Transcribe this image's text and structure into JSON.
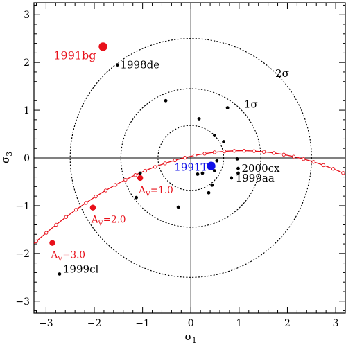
{
  "chart_data": {
    "type": "scatter",
    "xlabel": "σ",
    "xlabel_sub": "1",
    "ylabel": "σ",
    "ylabel_sub": "3",
    "xlim": [
      -3.25,
      3.2
    ],
    "ylim": [
      -3.25,
      3.25
    ],
    "x_ticks": [
      -3,
      -2,
      -1,
      0,
      1,
      2,
      3
    ],
    "y_ticks": [
      -3,
      -2,
      -1,
      0,
      1,
      2,
      3
    ],
    "x_tick_labels": [
      "−3",
      "−2",
      "−1",
      "0",
      "1",
      "2",
      "3"
    ],
    "y_tick_labels": [
      "−3",
      "−2",
      "−1",
      "0",
      "1",
      "2",
      "3"
    ],
    "grid": false,
    "contours": [
      {
        "label": "",
        "radius": 0.68
      },
      {
        "label": "1σ",
        "radius": 1.45
      },
      {
        "label": "2σ",
        "radius": 2.5
      }
    ],
    "extinction_curve": {
      "color": "#e8101a",
      "x_range": [
        -3.25,
        3.2
      ],
      "vertex": [
        1.05,
        0.15
      ],
      "curvature": -0.105,
      "markers": [
        {
          "label": "A",
          "sub": "V",
          "value": "=1.0",
          "x": -1.05,
          "y": -0.42
        },
        {
          "label": "A",
          "sub": "V",
          "value": "=2.0",
          "x": -2.03,
          "y": -1.04
        },
        {
          "label": "A",
          "sub": "V",
          "value": "=3.0",
          "x": -2.87,
          "y": -1.78
        }
      ]
    },
    "series": [
      {
        "color": "#000000",
        "points": [
          {
            "x": -1.52,
            "y": 1.95,
            "label": "1998de"
          },
          {
            "x": -0.52,
            "y": 1.2,
            "label": ""
          },
          {
            "x": 0.17,
            "y": 0.82,
            "label": ""
          },
          {
            "x": 0.76,
            "y": 1.05,
            "label": ""
          },
          {
            "x": 0.49,
            "y": 0.47,
            "label": ""
          },
          {
            "x": 0.68,
            "y": 0.34,
            "label": ""
          },
          {
            "x": 0.96,
            "y": -0.02,
            "label": ""
          },
          {
            "x": 0.54,
            "y": -0.06,
            "label": ""
          },
          {
            "x": 0.98,
            "y": -0.22,
            "label": "2000cx"
          },
          {
            "x": 0.98,
            "y": -0.32,
            "label": ""
          },
          {
            "x": 0.84,
            "y": -0.42,
            "label": "1999aa"
          },
          {
            "x": 0.49,
            "y": -0.27,
            "label": ""
          },
          {
            "x": 0.24,
            "y": -0.32,
            "label": ""
          },
          {
            "x": 0.14,
            "y": -0.34,
            "label": ""
          },
          {
            "x": 0.44,
            "y": -0.57,
            "label": ""
          },
          {
            "x": 0.37,
            "y": -0.73,
            "label": ""
          },
          {
            "x": -1.05,
            "y": -0.32,
            "label": ""
          },
          {
            "x": -1.13,
            "y": -0.83,
            "label": ""
          },
          {
            "x": -0.26,
            "y": -1.03,
            "label": ""
          },
          {
            "x": -2.72,
            "y": -2.43,
            "label": "1999cl"
          }
        ]
      },
      {
        "color": "#e8101a",
        "size": "large",
        "points": [
          {
            "x": -1.82,
            "y": 2.33,
            "label": "1991bg"
          }
        ]
      },
      {
        "color": "#1010e8",
        "size": "large",
        "points": [
          {
            "x": 0.42,
            "y": -0.17,
            "label": "1991T"
          }
        ]
      }
    ]
  }
}
